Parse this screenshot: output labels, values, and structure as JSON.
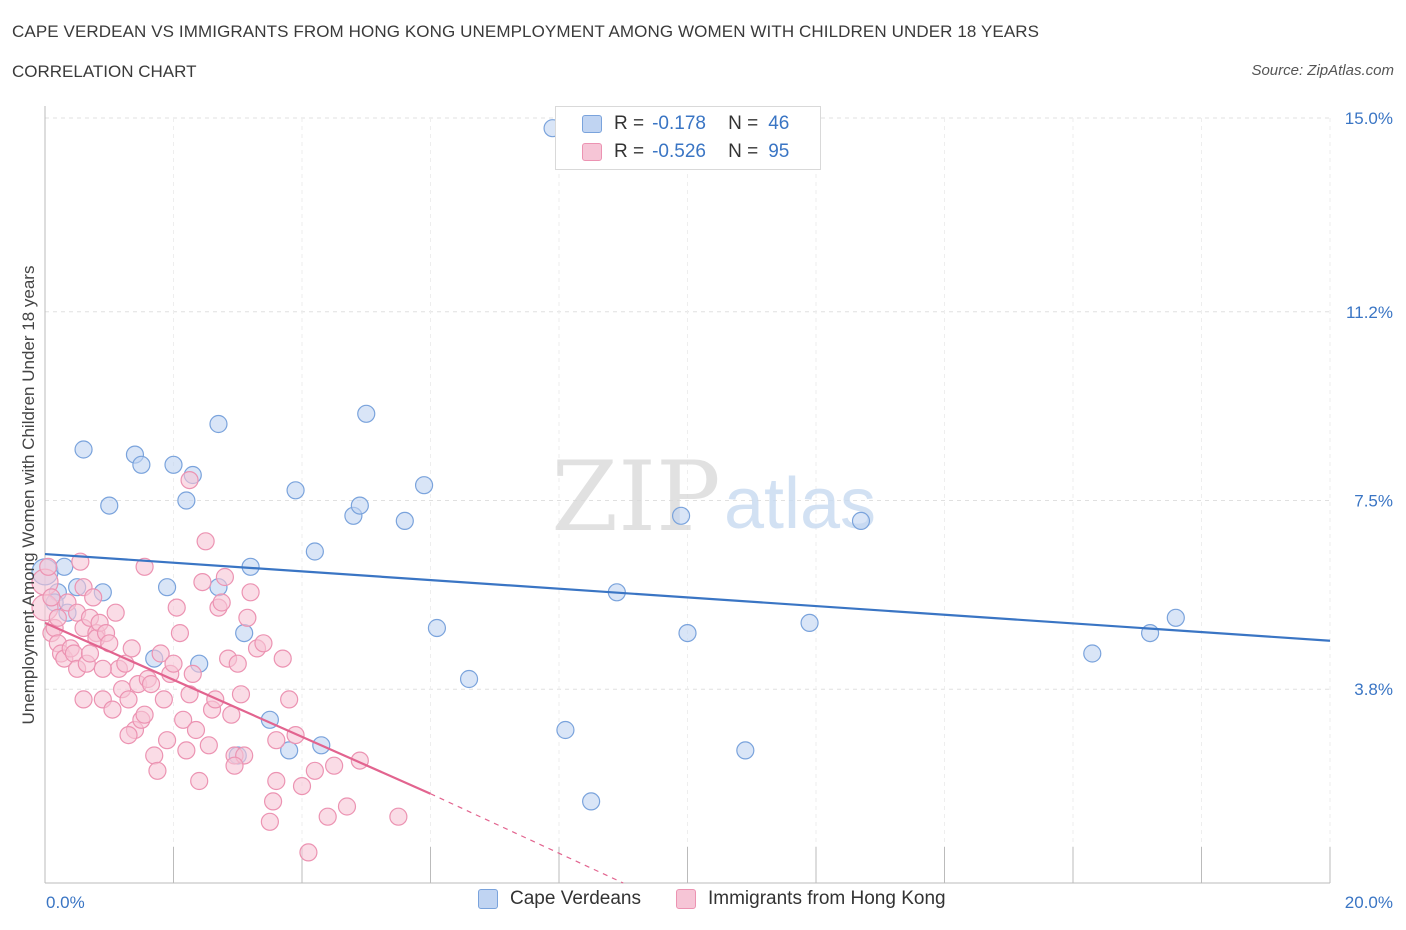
{
  "header": {
    "title": "CAPE VERDEAN VS IMMIGRANTS FROM HONG KONG UNEMPLOYMENT AMONG WOMEN WITH CHILDREN UNDER 18 YEARS",
    "subtitle": "CORRELATION CHART",
    "source": "Source: ZipAtlas.com"
  },
  "watermark": {
    "zip": "ZIP",
    "atlas": "atlas"
  },
  "stats": {
    "r_label": "R =",
    "n_label": "N =",
    "rows": [
      {
        "r": "-0.178",
        "n": "46"
      },
      {
        "r": "-0.526",
        "n": "95"
      }
    ]
  },
  "colors": {
    "blue": "#3a75c4",
    "blue_fill": "#c0d4f2",
    "blue_stroke": "#7aa3dc",
    "pink": "#e2648f",
    "pink_fill": "#f6c5d6",
    "pink_stroke": "#ec93b2"
  },
  "chart_data": {
    "type": "scatter",
    "title": "CAPE VERDEAN VS IMMIGRANTS FROM HONG KONG UNEMPLOYMENT AMONG WOMEN WITH CHILDREN UNDER 18 YEARS",
    "xlabel": "",
    "ylabel": "Unemployment Among Women with Children Under 18 years",
    "xlim": [
      0,
      20
    ],
    "ylim": [
      0,
      15
    ],
    "x_tick_labels": [
      "0.0%",
      "20.0%"
    ],
    "y_tick_labels": [
      "3.8%",
      "7.5%",
      "11.2%",
      "15.0%"
    ],
    "y_ticks": [
      3.8,
      7.5,
      11.2,
      15.0
    ],
    "grid": true,
    "legend": "bottom-center",
    "series": [
      {
        "name": "Cape Verdeans",
        "color": "#3a75c4",
        "points": [
          [
            0.0,
            6.1
          ],
          [
            0.2,
            5.7
          ],
          [
            0.3,
            6.2
          ],
          [
            0.5,
            5.8
          ],
          [
            0.6,
            8.5
          ],
          [
            0.9,
            5.7
          ],
          [
            1.0,
            7.4
          ],
          [
            1.4,
            8.4
          ],
          [
            1.5,
            8.2
          ],
          [
            1.7,
            4.4
          ],
          [
            1.9,
            5.8
          ],
          [
            2.0,
            8.2
          ],
          [
            2.2,
            7.5
          ],
          [
            2.3,
            8.0
          ],
          [
            2.4,
            4.3
          ],
          [
            2.7,
            5.8
          ],
          [
            2.7,
            9.0
          ],
          [
            3.0,
            2.5
          ],
          [
            3.1,
            4.9
          ],
          [
            3.2,
            6.2
          ],
          [
            3.5,
            3.2
          ],
          [
            3.8,
            2.6
          ],
          [
            3.9,
            7.7
          ],
          [
            4.2,
            6.5
          ],
          [
            4.3,
            2.7
          ],
          [
            4.8,
            7.2
          ],
          [
            4.9,
            7.4
          ],
          [
            5.0,
            9.2
          ],
          [
            5.6,
            7.1
          ],
          [
            5.9,
            7.8
          ],
          [
            6.1,
            5.0
          ],
          [
            6.6,
            4.0
          ],
          [
            7.9,
            14.8
          ],
          [
            8.1,
            3.0
          ],
          [
            8.5,
            1.6
          ],
          [
            8.9,
            5.7
          ],
          [
            9.9,
            7.2
          ],
          [
            10.0,
            4.9
          ],
          [
            10.9,
            2.6
          ],
          [
            11.9,
            5.1
          ],
          [
            12.7,
            7.1
          ],
          [
            16.3,
            4.5
          ],
          [
            17.2,
            4.9
          ],
          [
            17.6,
            5.2
          ],
          [
            0.35,
            5.3
          ],
          [
            0.15,
            5.5
          ]
        ],
        "trend": {
          "x": [
            0,
            20
          ],
          "y": [
            6.45,
            4.75
          ]
        }
      },
      {
        "name": "Immigrants from Hong Kong",
        "color": "#e2648f",
        "points": [
          [
            0.0,
            5.4
          ],
          [
            0.0,
            5.9
          ],
          [
            0.05,
            6.2
          ],
          [
            0.1,
            4.9
          ],
          [
            0.1,
            5.6
          ],
          [
            0.15,
            5.0
          ],
          [
            0.2,
            5.2
          ],
          [
            0.2,
            4.7
          ],
          [
            0.25,
            4.5
          ],
          [
            0.3,
            4.4
          ],
          [
            0.35,
            5.5
          ],
          [
            0.4,
            4.6
          ],
          [
            0.45,
            4.5
          ],
          [
            0.5,
            5.3
          ],
          [
            0.5,
            4.2
          ],
          [
            0.55,
            6.3
          ],
          [
            0.6,
            5.0
          ],
          [
            0.6,
            5.8
          ],
          [
            0.65,
            4.3
          ],
          [
            0.7,
            5.2
          ],
          [
            0.7,
            4.5
          ],
          [
            0.75,
            5.6
          ],
          [
            0.8,
            4.9
          ],
          [
            0.8,
            4.8
          ],
          [
            0.85,
            5.1
          ],
          [
            0.9,
            3.6
          ],
          [
            0.95,
            4.9
          ],
          [
            1.0,
            4.7
          ],
          [
            1.05,
            3.4
          ],
          [
            1.1,
            5.3
          ],
          [
            1.15,
            4.2
          ],
          [
            1.2,
            3.8
          ],
          [
            1.25,
            4.3
          ],
          [
            1.3,
            3.6
          ],
          [
            1.35,
            4.6
          ],
          [
            1.4,
            3.0
          ],
          [
            1.45,
            3.9
          ],
          [
            1.5,
            3.2
          ],
          [
            1.55,
            3.3
          ],
          [
            1.6,
            4.0
          ],
          [
            1.65,
            3.9
          ],
          [
            1.7,
            2.5
          ],
          [
            1.75,
            2.2
          ],
          [
            1.8,
            4.5
          ],
          [
            1.85,
            3.6
          ],
          [
            1.9,
            2.8
          ],
          [
            1.95,
            4.1
          ],
          [
            2.0,
            4.3
          ],
          [
            2.05,
            5.4
          ],
          [
            2.1,
            4.9
          ],
          [
            2.15,
            3.2
          ],
          [
            2.2,
            2.6
          ],
          [
            2.25,
            3.7
          ],
          [
            2.3,
            4.1
          ],
          [
            2.35,
            3.0
          ],
          [
            2.4,
            2.0
          ],
          [
            2.45,
            5.9
          ],
          [
            2.5,
            6.7
          ],
          [
            2.55,
            2.7
          ],
          [
            2.6,
            3.4
          ],
          [
            2.65,
            3.6
          ],
          [
            2.7,
            5.4
          ],
          [
            2.75,
            5.5
          ],
          [
            2.8,
            6.0
          ],
          [
            2.85,
            4.4
          ],
          [
            2.9,
            3.3
          ],
          [
            2.95,
            2.5
          ],
          [
            3.0,
            4.3
          ],
          [
            3.05,
            3.7
          ],
          [
            3.1,
            2.5
          ],
          [
            3.15,
            5.2
          ],
          [
            3.2,
            5.7
          ],
          [
            3.3,
            4.6
          ],
          [
            3.4,
            4.7
          ],
          [
            3.5,
            1.2
          ],
          [
            3.55,
            1.6
          ],
          [
            3.6,
            2.0
          ],
          [
            3.7,
            4.4
          ],
          [
            3.8,
            3.6
          ],
          [
            3.9,
            2.9
          ],
          [
            4.0,
            1.9
          ],
          [
            4.1,
            0.6
          ],
          [
            4.2,
            2.2
          ],
          [
            4.4,
            1.3
          ],
          [
            4.5,
            2.3
          ],
          [
            4.7,
            1.5
          ],
          [
            4.9,
            2.4
          ],
          [
            5.5,
            1.3
          ],
          [
            2.25,
            7.9
          ],
          [
            1.55,
            6.2
          ],
          [
            0.9,
            4.2
          ],
          [
            1.3,
            2.9
          ],
          [
            0.6,
            3.6
          ],
          [
            2.95,
            2.3
          ],
          [
            3.6,
            2.8
          ]
        ],
        "trend": {
          "x": [
            0,
            6.0
          ],
          "y": [
            5.1,
            1.75
          ]
        },
        "trend_dashed": {
          "x": [
            6.0,
            9.0
          ],
          "y": [
            1.75,
            0.0
          ]
        }
      }
    ]
  }
}
